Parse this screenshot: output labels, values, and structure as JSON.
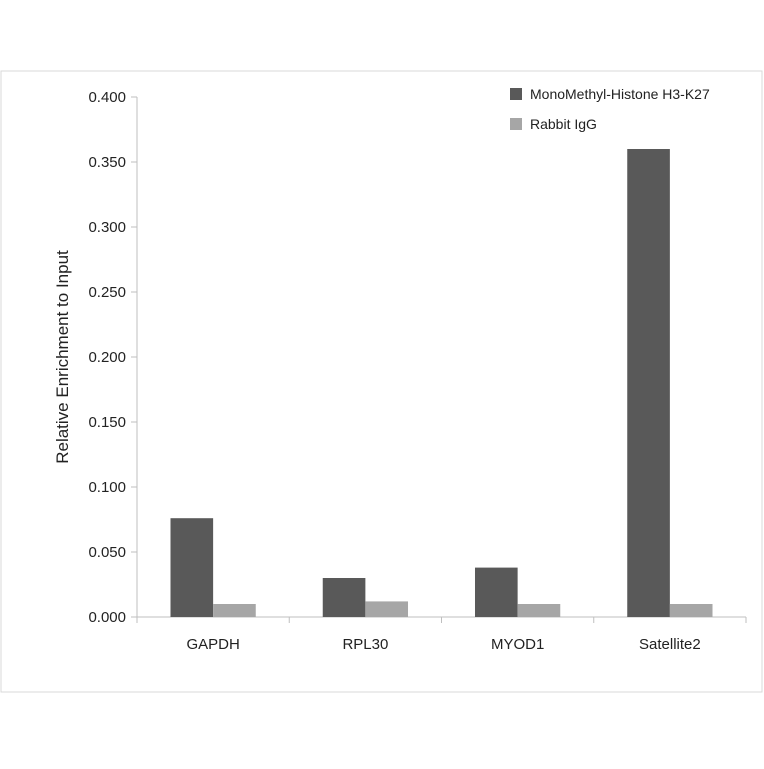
{
  "chart_data": {
    "type": "bar",
    "categories": [
      "GAPDH",
      "RPL30",
      "MYOD1",
      "Satellite2"
    ],
    "series": [
      {
        "name": "MonoMethyl-Histone H3-K27",
        "color": "#595959",
        "values": [
          0.076,
          0.03,
          0.038,
          0.36
        ]
      },
      {
        "name": "Rabbit IgG",
        "color": "#a6a6a6",
        "values": [
          0.01,
          0.012,
          0.01,
          0.01
        ]
      }
    ],
    "ylabel": "Relative Enrichment to Input",
    "xlabel": "",
    "ylim": [
      0,
      0.4
    ],
    "yticks": [
      "0.000",
      "0.050",
      "0.100",
      "0.150",
      "0.200",
      "0.250",
      "0.300",
      "0.350",
      "0.400"
    ],
    "ytick_values": [
      0,
      0.05,
      0.1,
      0.15,
      0.2,
      0.25,
      0.3,
      0.35,
      0.4
    ],
    "grid": false,
    "legend_position": "top-right"
  }
}
